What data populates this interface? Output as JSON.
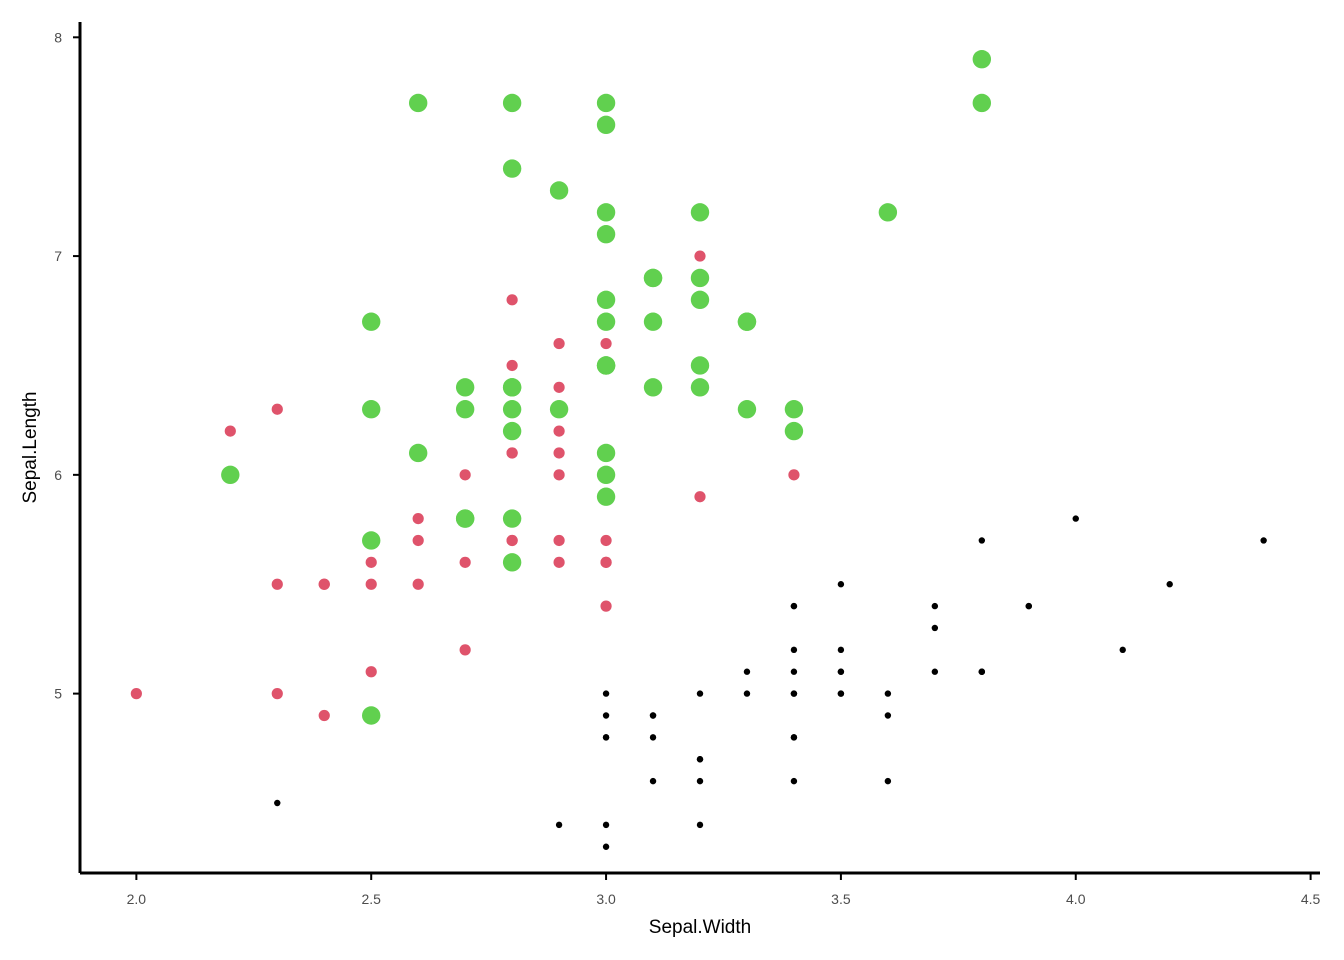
{
  "chart_data": {
    "type": "scatter",
    "title": "",
    "xlabel": "Sepal.Width",
    "ylabel": "Sepal.Length",
    "xlim": [
      1.88,
      4.52
    ],
    "ylim": [
      4.18,
      8.07
    ],
    "x_ticks": [
      2.0,
      2.5,
      3.0,
      3.5,
      4.0,
      4.5
    ],
    "x_tick_labels": [
      "2.0",
      "2.5",
      "3.0",
      "3.5",
      "4.0",
      "4.5"
    ],
    "y_ticks": [
      5,
      6,
      7,
      8
    ],
    "y_tick_labels": [
      "5",
      "6",
      "7",
      "8"
    ],
    "grid": false,
    "legend": "none",
    "series": [
      {
        "color": "#000000",
        "marker_size": "small",
        "points": [
          [
            3.5,
            5.1
          ],
          [
            3.0,
            4.9
          ],
          [
            3.2,
            4.7
          ],
          [
            3.1,
            4.6
          ],
          [
            3.6,
            5.0
          ],
          [
            3.9,
            5.4
          ],
          [
            3.4,
            4.6
          ],
          [
            3.4,
            5.0
          ],
          [
            2.9,
            4.4
          ],
          [
            3.1,
            4.9
          ],
          [
            3.7,
            5.4
          ],
          [
            3.4,
            4.8
          ],
          [
            3.0,
            4.8
          ],
          [
            3.0,
            4.3
          ],
          [
            4.0,
            5.8
          ],
          [
            4.4,
            5.7
          ],
          [
            3.9,
            5.4
          ],
          [
            3.5,
            5.1
          ],
          [
            3.8,
            5.7
          ],
          [
            3.8,
            5.1
          ],
          [
            3.4,
            5.4
          ],
          [
            3.7,
            5.1
          ],
          [
            3.6,
            4.6
          ],
          [
            3.3,
            5.1
          ],
          [
            3.4,
            4.8
          ],
          [
            3.0,
            5.0
          ],
          [
            3.4,
            5.0
          ],
          [
            3.5,
            5.2
          ],
          [
            3.4,
            5.2
          ],
          [
            3.2,
            4.7
          ],
          [
            3.1,
            4.8
          ],
          [
            3.4,
            5.4
          ],
          [
            4.1,
            5.2
          ],
          [
            4.2,
            5.5
          ],
          [
            3.1,
            4.9
          ],
          [
            3.2,
            5.0
          ],
          [
            3.5,
            5.5
          ],
          [
            3.6,
            4.9
          ],
          [
            3.0,
            4.4
          ],
          [
            3.4,
            5.1
          ],
          [
            3.5,
            5.0
          ],
          [
            2.3,
            4.5
          ],
          [
            3.2,
            4.4
          ],
          [
            3.5,
            5.0
          ],
          [
            3.8,
            5.1
          ],
          [
            3.0,
            4.8
          ],
          [
            3.8,
            5.1
          ],
          [
            3.2,
            4.6
          ],
          [
            3.7,
            5.3
          ],
          [
            3.3,
            5.0
          ]
        ]
      },
      {
        "color": "#DF536B",
        "marker_size": "medium",
        "points": [
          [
            3.2,
            7.0
          ],
          [
            3.2,
            6.4
          ],
          [
            3.1,
            6.9
          ],
          [
            2.3,
            5.5
          ],
          [
            2.8,
            6.5
          ],
          [
            2.8,
            5.7
          ],
          [
            3.3,
            6.3
          ],
          [
            2.4,
            4.9
          ],
          [
            2.9,
            6.6
          ],
          [
            2.7,
            5.2
          ],
          [
            2.0,
            5.0
          ],
          [
            3.0,
            5.9
          ],
          [
            2.2,
            6.0
          ],
          [
            2.9,
            6.1
          ],
          [
            2.9,
            5.6
          ],
          [
            3.1,
            6.7
          ],
          [
            3.0,
            5.6
          ],
          [
            2.7,
            5.8
          ],
          [
            2.2,
            6.2
          ],
          [
            2.5,
            5.6
          ],
          [
            3.2,
            5.9
          ],
          [
            2.8,
            6.1
          ],
          [
            2.5,
            6.3
          ],
          [
            2.8,
            6.1
          ],
          [
            2.9,
            6.4
          ],
          [
            3.0,
            6.6
          ],
          [
            2.8,
            6.8
          ],
          [
            3.0,
            6.7
          ],
          [
            2.9,
            6.0
          ],
          [
            2.6,
            5.7
          ],
          [
            2.4,
            5.5
          ],
          [
            2.4,
            5.5
          ],
          [
            2.7,
            5.8
          ],
          [
            2.7,
            6.0
          ],
          [
            3.0,
            5.4
          ],
          [
            3.4,
            6.0
          ],
          [
            3.1,
            6.7
          ],
          [
            2.3,
            6.3
          ],
          [
            3.0,
            5.6
          ],
          [
            2.5,
            5.5
          ],
          [
            2.6,
            5.5
          ],
          [
            3.0,
            6.1
          ],
          [
            2.6,
            5.8
          ],
          [
            2.3,
            5.0
          ],
          [
            2.7,
            5.6
          ],
          [
            3.0,
            5.7
          ],
          [
            2.9,
            5.7
          ],
          [
            2.9,
            6.2
          ],
          [
            2.5,
            5.1
          ],
          [
            2.8,
            5.7
          ]
        ]
      },
      {
        "color": "#61D04F",
        "marker_size": "large",
        "points": [
          [
            3.3,
            6.3
          ],
          [
            2.7,
            5.8
          ],
          [
            3.0,
            7.1
          ],
          [
            2.9,
            6.3
          ],
          [
            3.0,
            6.5
          ],
          [
            3.0,
            7.6
          ],
          [
            2.5,
            4.9
          ],
          [
            2.9,
            7.3
          ],
          [
            2.5,
            6.7
          ],
          [
            3.6,
            7.2
          ],
          [
            3.2,
            6.5
          ],
          [
            2.7,
            6.4
          ],
          [
            3.0,
            6.8
          ],
          [
            2.5,
            5.7
          ],
          [
            2.8,
            5.8
          ],
          [
            3.2,
            6.4
          ],
          [
            3.0,
            6.5
          ],
          [
            3.8,
            7.7
          ],
          [
            2.6,
            7.7
          ],
          [
            2.2,
            6.0
          ],
          [
            3.2,
            6.9
          ],
          [
            2.8,
            5.6
          ],
          [
            2.8,
            7.7
          ],
          [
            2.7,
            6.3
          ],
          [
            3.3,
            6.7
          ],
          [
            3.2,
            7.2
          ],
          [
            2.8,
            6.2
          ],
          [
            3.0,
            6.1
          ],
          [
            2.8,
            6.4
          ],
          [
            3.0,
            7.2
          ],
          [
            2.8,
            7.4
          ],
          [
            3.8,
            7.9
          ],
          [
            2.8,
            6.4
          ],
          [
            2.8,
            6.3
          ],
          [
            2.6,
            6.1
          ],
          [
            3.0,
            7.7
          ],
          [
            3.4,
            6.3
          ],
          [
            3.1,
            6.4
          ],
          [
            3.0,
            6.0
          ],
          [
            3.1,
            6.9
          ],
          [
            3.1,
            6.7
          ],
          [
            3.1,
            6.9
          ],
          [
            2.7,
            5.8
          ],
          [
            3.2,
            6.8
          ],
          [
            3.3,
            6.7
          ],
          [
            3.0,
            6.7
          ],
          [
            2.5,
            6.3
          ],
          [
            3.0,
            6.5
          ],
          [
            3.4,
            6.2
          ],
          [
            3.0,
            5.9
          ]
        ]
      }
    ]
  }
}
